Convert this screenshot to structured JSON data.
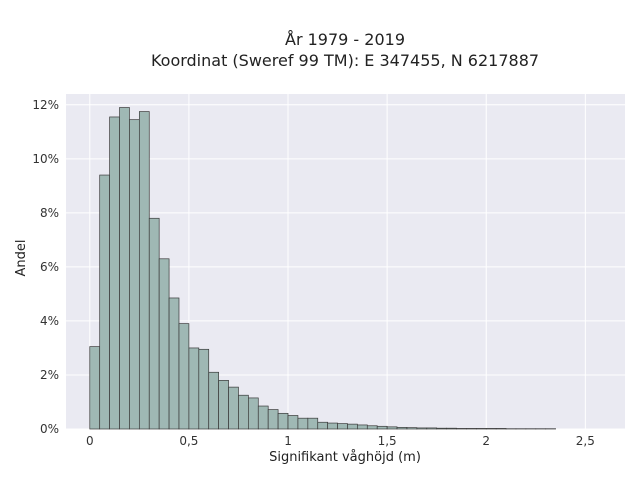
{
  "chart_data": {
    "type": "bar",
    "title": "År 1979 - 2019",
    "subtitle": "Koordinat (Sweref 99 TM): E 347455, N 6217887",
    "xlabel": "Signifikant våghöjd (m)",
    "ylabel": "Andel",
    "xlim": [
      -0.12,
      2.7
    ],
    "ylim": [
      0,
      12.4
    ],
    "grid": true,
    "x_ticks": [
      {
        "value": 0,
        "label": "0"
      },
      {
        "value": 0.5,
        "label": "0,5"
      },
      {
        "value": 1,
        "label": "1"
      },
      {
        "value": 1.5,
        "label": "1,5"
      },
      {
        "value": 2,
        "label": "2"
      },
      {
        "value": 2.5,
        "label": "2,5"
      }
    ],
    "y_ticks": [
      {
        "value": 0,
        "label": "0%"
      },
      {
        "value": 2,
        "label": "2%"
      },
      {
        "value": 4,
        "label": "4%"
      },
      {
        "value": 6,
        "label": "6%"
      },
      {
        "value": 8,
        "label": "8%"
      },
      {
        "value": 10,
        "label": "10%"
      },
      {
        "value": 12,
        "label": "12%"
      }
    ],
    "bin_width": 0.05,
    "bin_starts": [
      0,
      0.05,
      0.1,
      0.15,
      0.2,
      0.25,
      0.3,
      0.35,
      0.4,
      0.45,
      0.5,
      0.55,
      0.6,
      0.65,
      0.7,
      0.75,
      0.8,
      0.85,
      0.9,
      0.95,
      1.0,
      1.05,
      1.1,
      1.15,
      1.2,
      1.25,
      1.3,
      1.35,
      1.4,
      1.45,
      1.5,
      1.55,
      1.6,
      1.65,
      1.7,
      1.75,
      1.8,
      1.85,
      1.9,
      1.95,
      2.0,
      2.05,
      2.1,
      2.15,
      2.2,
      2.25,
      2.3
    ],
    "values": [
      3.05,
      9.4,
      11.55,
      11.9,
      11.45,
      11.75,
      7.8,
      6.3,
      4.85,
      3.9,
      3.0,
      2.95,
      2.1,
      1.8,
      1.55,
      1.25,
      1.15,
      0.85,
      0.72,
      0.58,
      0.5,
      0.4,
      0.4,
      0.25,
      0.22,
      0.2,
      0.18,
      0.15,
      0.12,
      0.1,
      0.08,
      0.06,
      0.05,
      0.04,
      0.04,
      0.03,
      0.03,
      0.02,
      0.02,
      0.02,
      0.02,
      0.02,
      0.01,
      0.01,
      0.01,
      0.01,
      0.01
    ],
    "colors": {
      "bar_fill": "#9fb8b4",
      "bar_edge": "#3a3a3a",
      "plot_bg": "#eaeaf2",
      "grid": "#ffffff"
    }
  }
}
